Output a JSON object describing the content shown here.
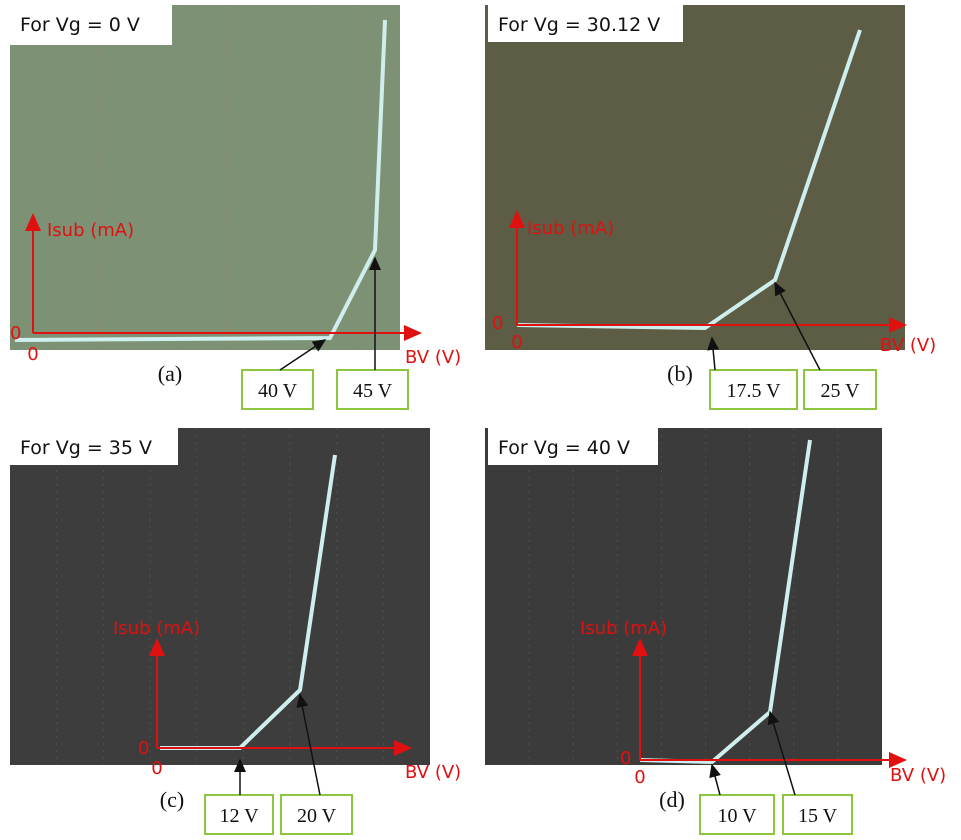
{
  "panels": [
    {
      "title": "For Vg = 0 V",
      "y_axis_label": "Isub (mA)",
      "y_origin": 0,
      "x_origin": 0,
      "x_axis_label": "BV (V)",
      "label": "(a)",
      "annotations": [
        "40 V",
        "45 V"
      ]
    },
    {
      "title": "For Vg = 30.12 V",
      "y_axis_label": "Isub (mA)",
      "y_origin": 0,
      "x_origin": 0,
      "x_axis_label": "BV (V)",
      "label": "(b)",
      "annotations": [
        "17.5 V",
        "25 V"
      ]
    },
    {
      "title": "For Vg = 35 V",
      "y_axis_label": "Isub (mA)",
      "y_origin": 0,
      "x_origin": 0,
      "x_axis_label": "BV (V)",
      "label": "(c)",
      "annotations": [
        "12 V",
        "20 V"
      ]
    },
    {
      "title": "For Vg = 40 V",
      "y_axis_label": "Isub (mA)",
      "y_origin": 0,
      "x_origin": 0,
      "x_axis_label": "BV (V)",
      "label": "(d)",
      "annotations": [
        "10 V",
        "15 V"
      ]
    }
  ]
}
